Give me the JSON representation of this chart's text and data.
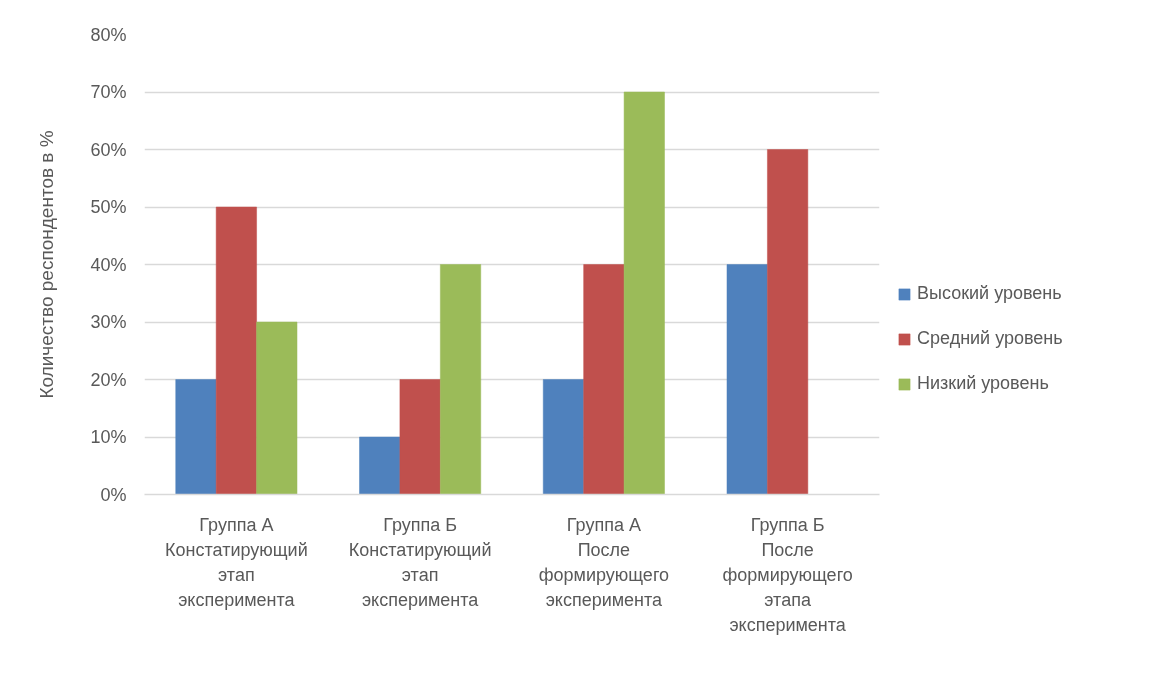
{
  "chart_data": {
    "type": "bar",
    "categories": [
      "Группа А Констатирующий этап эксперимента",
      "Группа Б Констатирующий этап эксперимента",
      "Группа А После формирующего эксперимента",
      "Группа Б После формирующего этапа эксперимента"
    ],
    "series": [
      {
        "name": "Высокий уровень",
        "color": "#4f81bd",
        "values": [
          20,
          10,
          20,
          40
        ]
      },
      {
        "name": "Средний уровень",
        "color": "#c0504d",
        "values": [
          50,
          20,
          40,
          60
        ]
      },
      {
        "name": "Низкий уровень",
        "color": "#9bbb59",
        "values": [
          30,
          40,
          70,
          null
        ]
      }
    ],
    "ylabel": "Количество респондентов в %",
    "ylim": [
      0,
      80
    ],
    "yticks": [
      {
        "value": 0,
        "label": "0%"
      },
      {
        "value": 10,
        "label": "10%"
      },
      {
        "value": 20,
        "label": "20%"
      },
      {
        "value": 30,
        "label": "30%"
      },
      {
        "value": 40,
        "label": "40%"
      },
      {
        "value": 50,
        "label": "50%"
      },
      {
        "value": 60,
        "label": "60%"
      },
      {
        "value": 70,
        "label": "70%"
      },
      {
        "value": 80,
        "label": "80%"
      }
    ],
    "grid": "y",
    "legend": "right"
  }
}
